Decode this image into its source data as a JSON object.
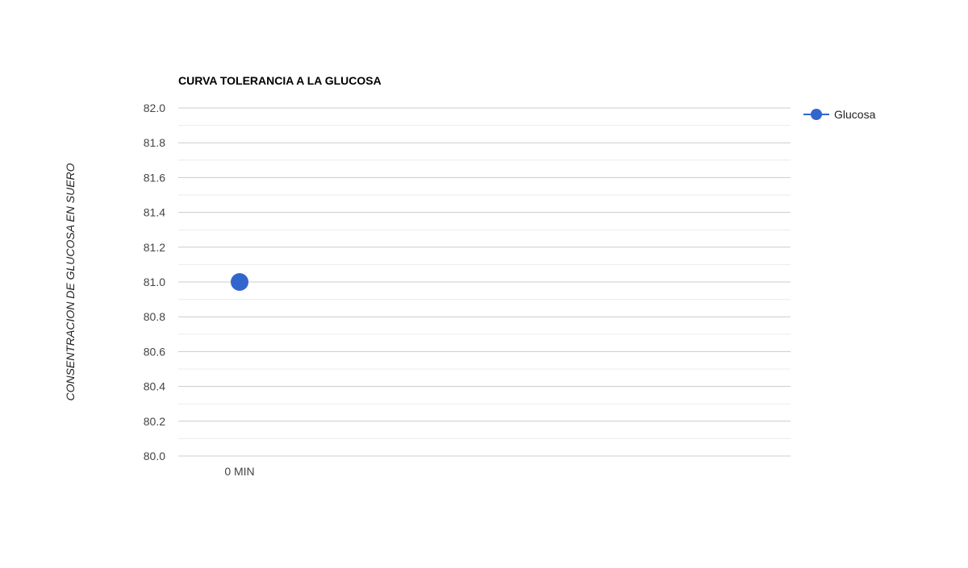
{
  "chart_data": {
    "type": "line",
    "title": "CURVA TOLERANCIA A LA GLUCOSA",
    "xlabel": "",
    "ylabel": "CONSENTRACION DE GLUCOSA EN SUERO",
    "categories": [
      "0 MIN"
    ],
    "series": [
      {
        "name": "Glucosa",
        "values": [
          81.0
        ],
        "color": "#3366cc"
      }
    ],
    "ylim": [
      80.0,
      82.0
    ],
    "yticks": [
      "80.0",
      "80.2",
      "80.4",
      "80.6",
      "80.8",
      "81.0",
      "81.2",
      "81.4",
      "81.6",
      "81.8",
      "82.0"
    ],
    "grid": true,
    "legend": "right"
  }
}
